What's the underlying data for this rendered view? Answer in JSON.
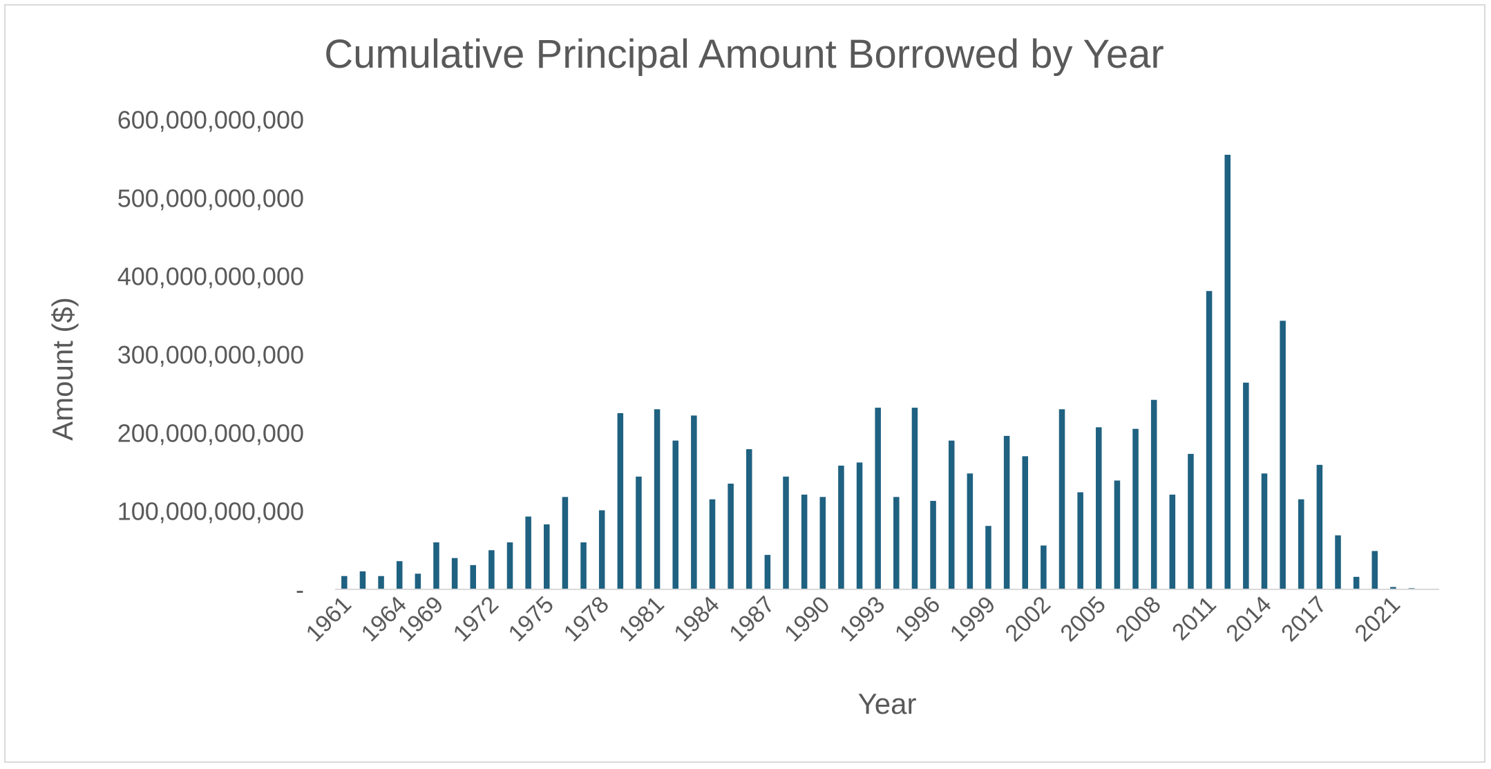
{
  "chart_data": {
    "type": "bar",
    "title": "Cumulative Principal Amount Borrowed by Year",
    "xlabel": "Year",
    "ylabel": "Amount ($)",
    "ylim": [
      0,
      600000000000
    ],
    "yticks": [
      0,
      100000000000,
      200000000000,
      300000000000,
      400000000000,
      500000000000,
      600000000000
    ],
    "ytick_labels": [
      "-",
      "100,000,000,000",
      "200,000,000,000",
      "300,000,000,000",
      "400,000,000,000",
      "500,000,000,000",
      "600,000,000,000"
    ],
    "grid": false,
    "legend": "none",
    "bar_color": "#1f6181",
    "categories": [
      "1961",
      "1962",
      "1963",
      "1964",
      "1965",
      "1969",
      "1970",
      "1971",
      "1972",
      "1973",
      "1974",
      "1975",
      "1976",
      "1977",
      "1978",
      "1979",
      "1980",
      "1981",
      "1982",
      "1983",
      "1984",
      "1985",
      "1986",
      "1987",
      "1988",
      "1989",
      "1990",
      "1991",
      "1992",
      "1993",
      "1994",
      "1995",
      "1996",
      "1997",
      "1998",
      "1999",
      "2000",
      "2001",
      "2002",
      "2003",
      "2004",
      "2005",
      "2006",
      "2007",
      "2008",
      "2009",
      "2010",
      "2011",
      "2012",
      "2013",
      "2014",
      "2015",
      "2016",
      "2017",
      "2018",
      "2019",
      "2020",
      "2021",
      "2022",
      "2023"
    ],
    "shown_tick_labels": [
      "1961",
      "1964",
      "1969",
      "1972",
      "1975",
      "1978",
      "1981",
      "1984",
      "1987",
      "1990",
      "1993",
      "1996",
      "1999",
      "2002",
      "2005",
      "2008",
      "2011",
      "2014",
      "2017",
      "2021"
    ],
    "values": [
      17000000000,
      23000000000,
      17000000000,
      36000000000,
      20000000000,
      60000000000,
      40000000000,
      31000000000,
      50000000000,
      60000000000,
      93000000000,
      83000000000,
      118000000000,
      60000000000,
      101000000000,
      225000000000,
      144000000000,
      230000000000,
      190000000000,
      222000000000,
      115000000000,
      135000000000,
      179000000000,
      44000000000,
      144000000000,
      121000000000,
      118000000000,
      158000000000,
      162000000000,
      232000000000,
      118000000000,
      232000000000,
      113000000000,
      190000000000,
      148000000000,
      81000000000,
      196000000000,
      170000000000,
      56000000000,
      230000000000,
      124000000000,
      207000000000,
      139000000000,
      205000000000,
      242000000000,
      121000000000,
      173000000000,
      381000000000,
      555000000000,
      264000000000,
      148000000000,
      343000000000,
      115000000000,
      159000000000,
      69000000000,
      16000000000,
      49000000000,
      3000000000,
      1500000000,
      0
    ]
  }
}
